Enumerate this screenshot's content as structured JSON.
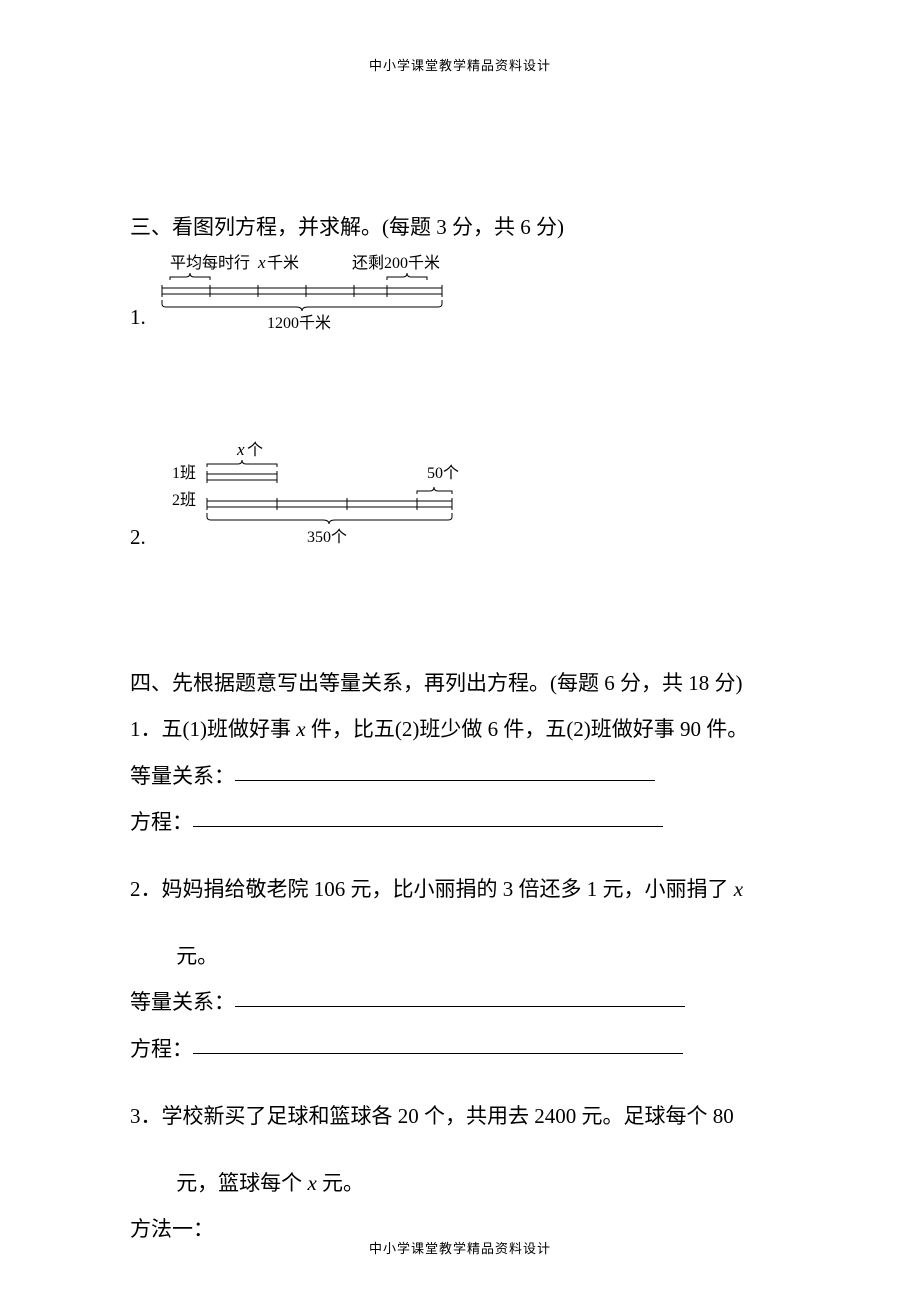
{
  "header": "中小学课堂教学精品资料设计",
  "footer": "中小学课堂教学精品资料设计",
  "section3": {
    "title": "三、看图列方程，并求解。(每题 3 分，共 6 分)",
    "q1": {
      "num": "1.",
      "top_left_pre": "平均每时行",
      "top_left_var": "x",
      "top_left_post": "千米",
      "top_right": "还剩200千米",
      "bottom": "1200千米"
    },
    "q2": {
      "num": "2.",
      "top_var": "x",
      "top_post": "个",
      "row1_label": "1班",
      "row2_label": "2班",
      "right_label": "50个",
      "bottom": "350个"
    }
  },
  "section4": {
    "title": "四、先根据题意写出等量关系，再列出方程。(每题 6 分，共 18 分)",
    "q1_line": "1．五(1)班做好事 x 件，比五(2)班少做 6 件，五(2)班做好事 90 件。",
    "eq_label": "等量关系：",
    "eq_blank_width": 420,
    "fx_label": "方程：",
    "fx_blank_width": 470,
    "q2_line1": "2．妈妈捐给敬老院 106 元，比小丽捐的 3 倍还多 1 元，小丽捐了 x",
    "q2_line2": "元。",
    "q2_eq_blank_width": 450,
    "q2_fx_blank_width": 490,
    "q3_line1": "3．学校新买了足球和篮球各 20 个，共用去 2400 元。足球每个 80",
    "q3_line2": "元，篮球每个 x 元。",
    "method1": "方法一："
  }
}
